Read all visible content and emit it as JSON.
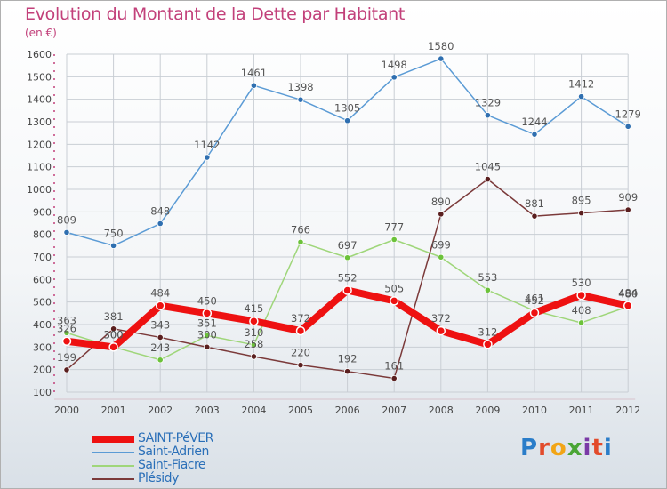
{
  "header": {
    "title": "Evolution du Montant de la Dette par Habitant",
    "subtitle": "(en €)"
  },
  "logo": {
    "text": "Proxiti",
    "colors": [
      "#2a7dc9",
      "#e24b2b",
      "#f2a516",
      "#4aa535",
      "#7a3aa6",
      "#e24b2b",
      "#2a7dc9"
    ]
  },
  "colors": {
    "title": "#c2407a",
    "axis_text": "#444444",
    "grid": "#c9ced4",
    "axis_dash": "#c2407a"
  },
  "chart_data": {
    "type": "line",
    "title": "Evolution du Montant de la Dette par Habitant",
    "subtitle": "(en €)",
    "x": [
      "2000",
      "2001",
      "2002",
      "2003",
      "2004",
      "2005",
      "2006",
      "2007",
      "2008",
      "2009",
      "2010",
      "2011",
      "2012"
    ],
    "yticks": [
      100,
      200,
      300,
      400,
      500,
      600,
      700,
      800,
      900,
      1000,
      1100,
      1200,
      1300,
      1400,
      1500,
      1600
    ],
    "ylim": [
      100,
      1600
    ],
    "grid": true,
    "legend_position": "bottom-left",
    "series": [
      {
        "name": "SAINT-PéVER",
        "color": "#ee1111",
        "marker": "#ee1111",
        "width": 8,
        "values": [
          326,
          300,
          484,
          450,
          415,
          372,
          552,
          505,
          372,
          312,
          452,
          530,
          484
        ],
        "labels": [
          "326",
          "300",
          "484",
          "450",
          "415",
          "372",
          "552",
          "505",
          "372",
          "312",
          "452",
          "530",
          "484"
        ]
      },
      {
        "name": "Saint-Adrien",
        "color": "#5b9bd5",
        "marker": "#2f6fb0",
        "width": 1.5,
        "values": [
          809,
          750,
          848,
          1142,
          1461,
          1398,
          1305,
          1498,
          1580,
          1329,
          1244,
          1412,
          1279
        ],
        "labels": [
          "809",
          "750",
          "848",
          "1142",
          "1461",
          "1398",
          "1305",
          "1498",
          "1580",
          "1329",
          "1244",
          "1412",
          "1279"
        ]
      },
      {
        "name": "Saint-Fiacre",
        "color": "#9fd67a",
        "marker": "#6cc23a",
        "width": 1.5,
        "values": [
          363,
          300,
          243,
          351,
          310,
          766,
          697,
          777,
          699,
          553,
          461,
          408,
          480
        ],
        "labels": [
          "363",
          "300",
          "243",
          "351",
          "310",
          "766",
          "697",
          "777",
          "699",
          "553",
          "461",
          "408",
          "480"
        ]
      },
      {
        "name": "Plésidy",
        "color": "#7b3a3a",
        "marker": "#5a1f1f",
        "width": 1.5,
        "values": [
          199,
          381,
          343,
          300,
          258,
          220,
          192,
          161,
          890,
          1045,
          881,
          895,
          909
        ],
        "labels": [
          "199",
          "381",
          "343",
          "300",
          "258",
          "220",
          "192",
          "161",
          "890",
          "1045",
          "881",
          "895",
          "909"
        ]
      }
    ]
  }
}
